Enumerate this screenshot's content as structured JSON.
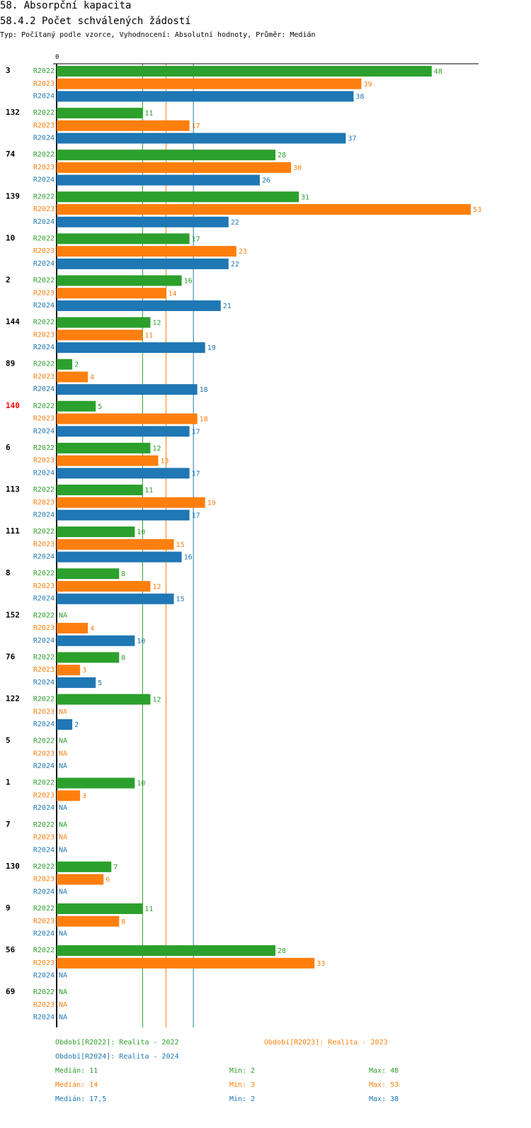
{
  "header": {
    "title": "58. Absorpční kapacita",
    "subtitle": "58.4.2 Počet schválených žádostí",
    "type_line": "Typ: Počítaný podle vzorce, Vyhodnocení: Absolutní hodnoty, Průměr: Medián"
  },
  "colors": {
    "R2022": "#2ca02c",
    "R2023": "#ff7f0e",
    "R2024": "#1f77b4",
    "highlight": "#ff0000"
  },
  "chart_data": {
    "type": "bar",
    "orientation": "horizontal",
    "xlim": [
      0,
      54
    ],
    "x_tick_labels": [
      "0"
    ],
    "series_names": [
      "R2022",
      "R2023",
      "R2024"
    ],
    "na_label": "NA",
    "highlight_group": "140",
    "groups": [
      {
        "label": "3",
        "values": [
          48,
          39,
          38
        ]
      },
      {
        "label": "132",
        "values": [
          11,
          17,
          37
        ]
      },
      {
        "label": "74",
        "values": [
          28,
          30,
          26
        ]
      },
      {
        "label": "139",
        "values": [
          31,
          53,
          22
        ]
      },
      {
        "label": "10",
        "values": [
          17,
          23,
          22
        ]
      },
      {
        "label": "2",
        "values": [
          16,
          14,
          21
        ]
      },
      {
        "label": "144",
        "values": [
          12,
          11,
          19
        ]
      },
      {
        "label": "89",
        "values": [
          2,
          4,
          18
        ]
      },
      {
        "label": "140",
        "values": [
          5,
          18,
          17
        ]
      },
      {
        "label": "6",
        "values": [
          12,
          13,
          17
        ]
      },
      {
        "label": "113",
        "values": [
          11,
          19,
          17
        ]
      },
      {
        "label": "111",
        "values": [
          10,
          15,
          16
        ]
      },
      {
        "label": "8",
        "values": [
          8,
          12,
          15
        ]
      },
      {
        "label": "152",
        "values": [
          null,
          4,
          10
        ]
      },
      {
        "label": "76",
        "values": [
          8,
          3,
          5
        ]
      },
      {
        "label": "122",
        "values": [
          12,
          null,
          2
        ]
      },
      {
        "label": "5",
        "values": [
          null,
          null,
          null
        ]
      },
      {
        "label": "1",
        "values": [
          10,
          3,
          null
        ]
      },
      {
        "label": "7",
        "values": [
          null,
          null,
          null
        ]
      },
      {
        "label": "130",
        "values": [
          7,
          6,
          null
        ]
      },
      {
        "label": "9",
        "values": [
          11,
          8,
          null
        ]
      },
      {
        "label": "56",
        "values": [
          28,
          33,
          null
        ]
      },
      {
        "label": "69",
        "values": [
          null,
          null,
          null
        ]
      }
    ],
    "medians": [
      11,
      14,
      17.5
    ]
  },
  "legend": {
    "periods": [
      "Období[R2022]: Realita - 2022",
      "Období[R2023]: Realita - 2023",
      "Období[R2024]: Realita - 2024"
    ],
    "stats": [
      {
        "median": "Medián: 11",
        "min": "Min: 2",
        "max": "Max: 48"
      },
      {
        "median": "Medián: 14",
        "min": "Min: 3",
        "max": "Max: 53"
      },
      {
        "median": "Medián: 17,5",
        "min": "Min: 2",
        "max": "Max: 38"
      }
    ]
  }
}
